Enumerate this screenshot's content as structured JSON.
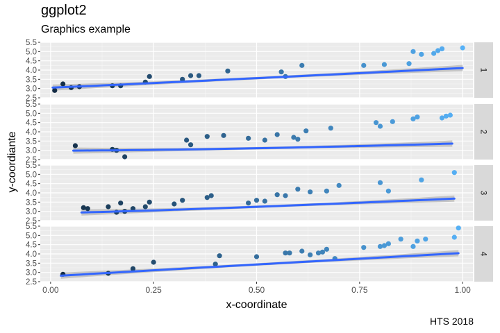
{
  "title": "ggplot2",
  "subtitle": "Graphics example",
  "caption": "HTS 2018",
  "chart_data": {
    "type": "scatter",
    "facet_layout": "rows",
    "xlabel": "x-coordinate",
    "ylabel": "y-coordiante",
    "xlim": [
      -0.025,
      1.025
    ],
    "xticks": [
      0.0,
      0.25,
      0.5,
      0.75,
      1.0
    ],
    "xtick_labels": [
      "0.00",
      "0.25",
      "0.50",
      "0.75",
      "1.00"
    ],
    "ylim": [
      2.5,
      5.5
    ],
    "yticks": [
      2.5,
      3.0,
      3.5,
      4.0,
      4.5,
      5.0,
      5.5
    ],
    "ytick_labels": [
      "2.5",
      "3.0",
      "3.5",
      "4.0",
      "4.5",
      "5.0",
      "5.5"
    ],
    "point_color_low": "#132b43",
    "point_color_high": "#56b1f7",
    "smooth_color": "#3366ff",
    "band_color": "#bdbdbd",
    "panel_bg": "#ebebeb",
    "strip_bg": "#d9d9d9",
    "panels": [
      {
        "label": "1",
        "points": [
          [
            0.01,
            2.9
          ],
          [
            0.03,
            3.25
          ],
          [
            0.05,
            3.05
          ],
          [
            0.07,
            3.1
          ],
          [
            0.15,
            3.15
          ],
          [
            0.17,
            3.15
          ],
          [
            0.23,
            3.35
          ],
          [
            0.24,
            3.65
          ],
          [
            0.32,
            3.5
          ],
          [
            0.34,
            3.7
          ],
          [
            0.36,
            3.7
          ],
          [
            0.43,
            3.95
          ],
          [
            0.56,
            3.9
          ],
          [
            0.57,
            3.65
          ],
          [
            0.61,
            4.25
          ],
          [
            0.76,
            4.25
          ],
          [
            0.81,
            4.3
          ],
          [
            0.87,
            4.35
          ],
          [
            0.88,
            5.0
          ],
          [
            0.9,
            4.85
          ],
          [
            0.93,
            4.9
          ],
          [
            0.94,
            5.05
          ],
          [
            0.95,
            5.15
          ],
          [
            1.0,
            5.2
          ]
        ],
        "fit": {
          "x0": 0.005,
          "x1": 1.0,
          "a": 3.05,
          "b": 1.06,
          "c": 1.05
        }
      },
      {
        "label": "2",
        "points": [
          [
            0.06,
            3.25
          ],
          [
            0.15,
            3.05
          ],
          [
            0.16,
            3.0
          ],
          [
            0.18,
            2.65
          ],
          [
            0.33,
            3.55
          ],
          [
            0.34,
            3.3
          ],
          [
            0.38,
            3.75
          ],
          [
            0.42,
            3.8
          ],
          [
            0.48,
            3.65
          ],
          [
            0.52,
            3.55
          ],
          [
            0.55,
            3.85
          ],
          [
            0.59,
            3.7
          ],
          [
            0.6,
            3.6
          ],
          [
            0.62,
            4.05
          ],
          [
            0.68,
            4.2
          ],
          [
            0.79,
            4.5
          ],
          [
            0.8,
            4.3
          ],
          [
            0.83,
            4.55
          ],
          [
            0.88,
            4.7
          ],
          [
            0.89,
            4.8
          ],
          [
            0.95,
            4.75
          ],
          [
            0.96,
            4.85
          ],
          [
            0.97,
            4.9
          ]
        ],
        "fit": {
          "x0": 0.055,
          "x1": 0.975,
          "a": 2.98,
          "b": 0.4,
          "c": 1.6
        }
      },
      {
        "label": "3",
        "points": [
          [
            0.08,
            3.2
          ],
          [
            0.09,
            3.15
          ],
          [
            0.14,
            3.25
          ],
          [
            0.16,
            2.95
          ],
          [
            0.17,
            3.45
          ],
          [
            0.18,
            3.0
          ],
          [
            0.2,
            3.15
          ],
          [
            0.23,
            3.25
          ],
          [
            0.24,
            3.5
          ],
          [
            0.3,
            3.4
          ],
          [
            0.32,
            3.6
          ],
          [
            0.38,
            3.75
          ],
          [
            0.39,
            3.85
          ],
          [
            0.48,
            3.45
          ],
          [
            0.5,
            3.6
          ],
          [
            0.52,
            3.55
          ],
          [
            0.55,
            3.9
          ],
          [
            0.57,
            3.85
          ],
          [
            0.6,
            4.2
          ],
          [
            0.63,
            4.05
          ],
          [
            0.67,
            4.1
          ],
          [
            0.7,
            4.4
          ],
          [
            0.8,
            4.55
          ],
          [
            0.82,
            4.1
          ],
          [
            0.9,
            4.7
          ],
          [
            0.98,
            5.1
          ]
        ],
        "fit": {
          "x0": 0.075,
          "x1": 0.98,
          "a": 2.91,
          "b": 0.8,
          "c": 1.25
        }
      },
      {
        "label": "4",
        "points": [
          [
            0.03,
            2.9
          ],
          [
            0.14,
            2.95
          ],
          [
            0.2,
            3.2
          ],
          [
            0.25,
            3.55
          ],
          [
            0.4,
            3.45
          ],
          [
            0.41,
            3.9
          ],
          [
            0.5,
            3.85
          ],
          [
            0.57,
            4.05
          ],
          [
            0.58,
            4.05
          ],
          [
            0.61,
            4.15
          ],
          [
            0.63,
            3.95
          ],
          [
            0.65,
            4.05
          ],
          [
            0.66,
            4.1
          ],
          [
            0.67,
            4.25
          ],
          [
            0.69,
            3.75
          ],
          [
            0.76,
            4.35
          ],
          [
            0.8,
            4.4
          ],
          [
            0.81,
            4.45
          ],
          [
            0.82,
            4.55
          ],
          [
            0.85,
            4.8
          ],
          [
            0.88,
            4.4
          ],
          [
            0.89,
            4.7
          ],
          [
            0.91,
            4.8
          ],
          [
            0.98,
            4.9
          ],
          [
            0.99,
            5.4
          ]
        ],
        "fit": {
          "x0": 0.025,
          "x1": 0.99,
          "a": 2.79,
          "b": 1.26,
          "c": 0.98
        }
      }
    ]
  }
}
